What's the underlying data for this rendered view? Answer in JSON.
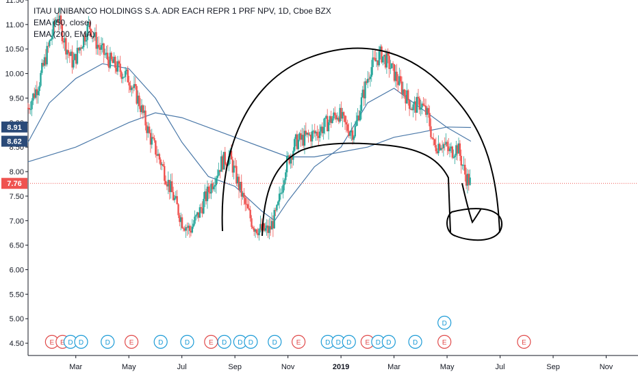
{
  "legend": {
    "title": "ITAU UNIBANCO HOLDINGS S.A. ADR EACH REPR 1 PRF NPV, 1D, Cboe BZX",
    "ema50": "EMA (50, close)",
    "ema200": "EMA (200, EMA)"
  },
  "colors": {
    "up": "#26a69a",
    "down": "#ef5350",
    "ema": "#4a78a8",
    "price_line": "#ef5350",
    "tag_blue": "#2a4a78",
    "drawing": "#000000"
  },
  "chart_data": {
    "type": "candlestick",
    "title": "ITAU UNIBANCO HOLDINGS S.A. ADR EACH REPR 1 PRF NPV, 1D, Cboe BZX",
    "ylim": [
      4.25,
      11.5
    ],
    "y_ticks": [
      "4.50",
      "5.00",
      "5.50",
      "6.00",
      "6.50",
      "7.00",
      "7.50",
      "8.00",
      "8.50",
      "9.00",
      "9.50",
      "10.00",
      "10.50",
      "11.00",
      "11.50"
    ],
    "x_ticks": [
      "Mar",
      "May",
      "Jul",
      "Sep",
      "Nov",
      "2019",
      "Mar",
      "May",
      "Jul",
      "Sep",
      "Nov"
    ],
    "x_tick_months": [
      2,
      4,
      6,
      8,
      10,
      12,
      14,
      16,
      18,
      20,
      22
    ],
    "x_start_month": 0.2,
    "x_end_month": 23.2,
    "price_tags": [
      {
        "label": "8.91",
        "value": 8.91,
        "kind": "blue"
      },
      {
        "label": "8.62",
        "value": 8.62,
        "kind": "blue"
      },
      {
        "label": "7.76",
        "value": 7.76,
        "kind": "red"
      }
    ],
    "price_path": [
      [
        0.2,
        9.3
      ],
      [
        0.6,
        9.8
      ],
      [
        1.0,
        10.6
      ],
      [
        1.3,
        11.2
      ],
      [
        1.6,
        10.6
      ],
      [
        1.9,
        10.2
      ],
      [
        2.2,
        10.6
      ],
      [
        2.5,
        11.0
      ],
      [
        2.8,
        10.6
      ],
      [
        3.2,
        10.3
      ],
      [
        3.6,
        10.1
      ],
      [
        4.0,
        9.9
      ],
      [
        4.4,
        9.4
      ],
      [
        4.8,
        8.7
      ],
      [
        5.2,
        8.2
      ],
      [
        5.6,
        7.6
      ],
      [
        6.0,
        7.0
      ],
      [
        6.3,
        6.8
      ],
      [
        6.6,
        7.1
      ],
      [
        7.0,
        7.6
      ],
      [
        7.5,
        8.2
      ],
      [
        7.8,
        8.3
      ],
      [
        8.1,
        7.8
      ],
      [
        8.4,
        7.3
      ],
      [
        8.7,
        6.9
      ],
      [
        9.0,
        6.8
      ],
      [
        9.3,
        6.8
      ],
      [
        9.6,
        7.2
      ],
      [
        9.9,
        8.1
      ],
      [
        10.3,
        8.6
      ],
      [
        10.7,
        8.7
      ],
      [
        11.1,
        8.8
      ],
      [
        11.5,
        9.0
      ],
      [
        11.9,
        9.2
      ],
      [
        12.2,
        8.9
      ],
      [
        12.5,
        8.8
      ],
      [
        12.8,
        9.5
      ],
      [
        13.1,
        10.1
      ],
      [
        13.5,
        10.4
      ],
      [
        13.8,
        10.2
      ],
      [
        14.1,
        9.9
      ],
      [
        14.4,
        9.6
      ],
      [
        14.7,
        9.3
      ],
      [
        15.0,
        9.4
      ],
      [
        15.3,
        9.1
      ],
      [
        15.5,
        8.5
      ],
      [
        15.8,
        8.6
      ],
      [
        16.1,
        8.4
      ],
      [
        16.4,
        8.5
      ],
      [
        16.7,
        7.9
      ],
      [
        16.9,
        7.76
      ]
    ],
    "ema50": [
      [
        0.2,
        8.6
      ],
      [
        1.0,
        9.4
      ],
      [
        2.0,
        9.9
      ],
      [
        3.0,
        10.2
      ],
      [
        4.0,
        10.1
      ],
      [
        5.0,
        9.5
      ],
      [
        6.0,
        8.6
      ],
      [
        7.0,
        7.9
      ],
      [
        8.0,
        7.7
      ],
      [
        9.0,
        7.2
      ],
      [
        9.5,
        7.0
      ],
      [
        10.0,
        7.4
      ],
      [
        11.0,
        8.1
      ],
      [
        12.0,
        8.5
      ],
      [
        13.0,
        9.4
      ],
      [
        14.0,
        9.7
      ],
      [
        15.0,
        9.3
      ],
      [
        16.0,
        8.9
      ],
      [
        16.9,
        8.62
      ]
    ],
    "ema200": [
      [
        0.2,
        8.2
      ],
      [
        2.0,
        8.5
      ],
      [
        4.0,
        9.0
      ],
      [
        5.0,
        9.2
      ],
      [
        6.0,
        9.1
      ],
      [
        8.0,
        8.7
      ],
      [
        10.0,
        8.3
      ],
      [
        11.0,
        8.3
      ],
      [
        13.0,
        8.5
      ],
      [
        14.0,
        8.7
      ],
      [
        15.0,
        8.8
      ],
      [
        16.0,
        8.91
      ],
      [
        16.9,
        8.9
      ]
    ],
    "events": [
      {
        "label": "E",
        "kind": "E",
        "month": 1.1
      },
      {
        "label": "E",
        "kind": "E",
        "month": 1.5
      },
      {
        "label": "D",
        "kind": "D",
        "month": 1.8
      },
      {
        "label": "D",
        "kind": "D",
        "month": 2.2
      },
      {
        "label": "D",
        "kind": "D",
        "month": 3.2
      },
      {
        "label": "E",
        "kind": "E",
        "month": 4.1
      },
      {
        "label": "D",
        "kind": "D",
        "month": 5.2
      },
      {
        "label": "D",
        "kind": "D",
        "month": 6.2
      },
      {
        "label": "E",
        "kind": "E",
        "month": 7.1
      },
      {
        "label": "D",
        "kind": "D",
        "month": 7.6
      },
      {
        "label": "D",
        "kind": "D",
        "month": 8.2
      },
      {
        "label": "D",
        "kind": "D",
        "month": 8.6
      },
      {
        "label": "D",
        "kind": "D",
        "month": 9.5
      },
      {
        "label": "E",
        "kind": "E",
        "month": 10.4
      },
      {
        "label": "D",
        "kind": "D",
        "month": 11.5
      },
      {
        "label": "D",
        "kind": "D",
        "month": 11.9
      },
      {
        "label": "D",
        "kind": "D",
        "month": 12.3
      },
      {
        "label": "E",
        "kind": "E",
        "month": 13.0
      },
      {
        "label": "D",
        "kind": "D",
        "month": 13.4
      },
      {
        "label": "D",
        "kind": "D",
        "month": 13.8
      },
      {
        "label": "D",
        "kind": "D",
        "month": 14.8
      },
      {
        "label": "E",
        "kind": "E",
        "month": 15.9
      },
      {
        "label": "D",
        "kind": "D",
        "month": 15.9,
        "row": 2
      },
      {
        "label": "E",
        "kind": "E",
        "month": 18.9
      }
    ]
  }
}
